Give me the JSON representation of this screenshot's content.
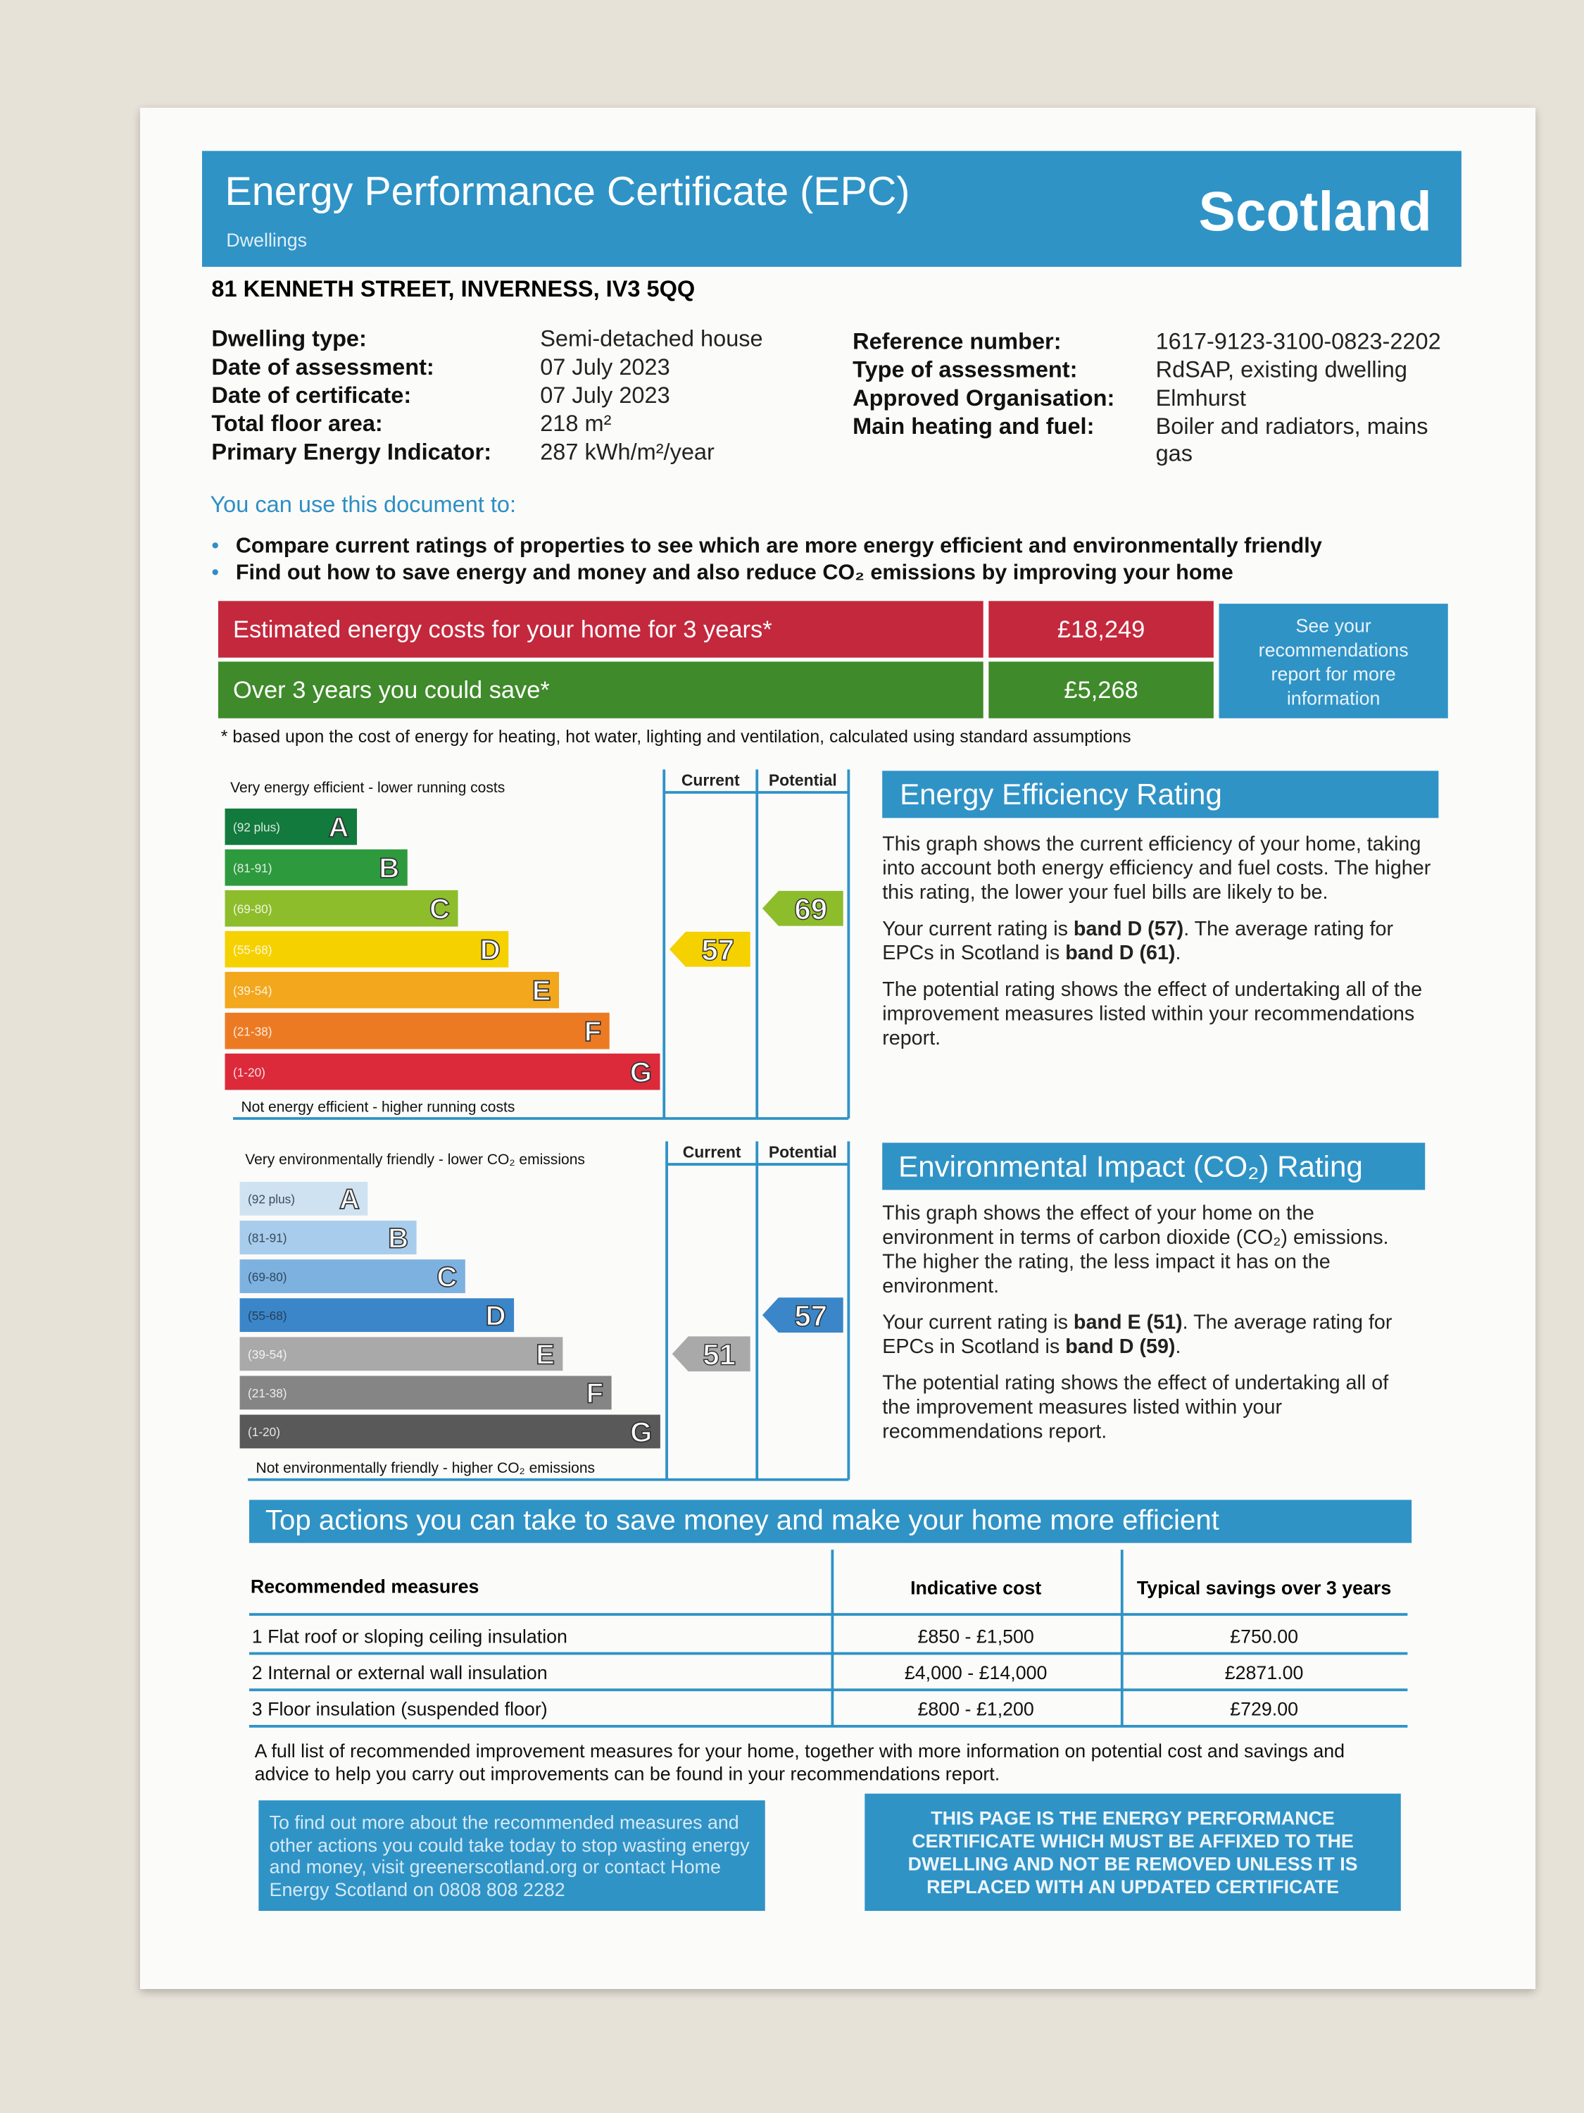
{
  "header": {
    "title": "Energy Performance Certificate (EPC)",
    "subtitle": "Dwellings",
    "region": "Scotland"
  },
  "address": "81 KENNETH STREET, INVERNESS, IV3 5QQ",
  "details_left": [
    [
      "Dwelling type:",
      "Semi-detached house"
    ],
    [
      "Date of assessment:",
      "07 July 2023"
    ],
    [
      "Date of certificate:",
      "07 July 2023"
    ],
    [
      "Total floor area:",
      "218 m²"
    ],
    [
      "Primary Energy Indicator:",
      "287 kWh/m²/year"
    ]
  ],
  "details_right": [
    [
      "Reference number:",
      "1617-9123-3100-0823-2202"
    ],
    [
      "Type of assessment:",
      "RdSAP, existing dwelling"
    ],
    [
      "Approved Organisation:",
      "Elmhurst"
    ],
    [
      "Main heating and fuel:",
      "Boiler and radiators, mains gas"
    ]
  ],
  "uses": {
    "heading": "You can use this document to:",
    "items": [
      "Compare current ratings of properties to see which are more energy efficient and environmentally friendly",
      "Find out how to save energy and money and also reduce CO₂ emissions by improving your home"
    ]
  },
  "costs": {
    "rows": [
      [
        "Estimated energy costs for your home for 3 years*",
        "£18,249"
      ],
      [
        "Over 3 years you could save*",
        "£5,268"
      ]
    ],
    "link": "See your recommendations report for more information",
    "footnote": "* based upon the cost of energy for heating, hot water, lighting and ventilation, calculated using standard assumptions"
  },
  "energy_rating": {
    "title": "Energy Efficiency Rating",
    "top_label": "Very energy efficient - lower running costs",
    "bottom_label": "Not energy efficient - higher running costs",
    "columns": [
      "Current",
      "Potential"
    ],
    "bands": [
      {
        "range": "(92 plus)",
        "letter": "A",
        "color": "#127a3c"
      },
      {
        "range": "(81-91)",
        "letter": "B",
        "color": "#2d9a3e"
      },
      {
        "range": "(69-80)",
        "letter": "C",
        "color": "#8dbd2b"
      },
      {
        "range": "(55-68)",
        "letter": "D",
        "color": "#f5d100"
      },
      {
        "range": "(39-54)",
        "letter": "E",
        "color": "#f2a71c"
      },
      {
        "range": "(21-38)",
        "letter": "F",
        "color": "#ec7a23"
      },
      {
        "range": "(1-20)",
        "letter": "G",
        "color": "#dc2a3a"
      }
    ],
    "current": 57,
    "potential": 69,
    "paragraphs": [
      [
        {
          "text": "This graph shows the current efficiency of your home, taking into account both energy efficiency and fuel costs. The higher this rating, the lower your fuel bills are likely to be.",
          "bold": false
        }
      ],
      [
        {
          "text": "Your current rating is ",
          "bold": false
        },
        {
          "text": "band D (57)",
          "bold": true
        },
        {
          "text": ". The average rating for EPCs in Scotland is ",
          "bold": false
        },
        {
          "text": "band D (61)",
          "bold": true
        },
        {
          "text": ".",
          "bold": false
        }
      ],
      [
        {
          "text": "The potential rating shows the effect of undertaking all of the improvement measures listed within your recommendations report.",
          "bold": false
        }
      ]
    ]
  },
  "environmental_rating": {
    "title": "Environmental Impact (CO₂) Rating",
    "top_label": "Very environmentally friendly - lower CO₂ emissions",
    "bottom_label": "Not environmentally friendly - higher CO₂ emissions",
    "columns": [
      "Current",
      "Potential"
    ],
    "bands": [
      {
        "range": "(92 plus)",
        "letter": "A",
        "color": "#cfe2f2"
      },
      {
        "range": "(81-91)",
        "letter": "B",
        "color": "#a8cceb"
      },
      {
        "range": "(69-80)",
        "letter": "C",
        "color": "#7db2e0"
      },
      {
        "range": "(55-68)",
        "letter": "D",
        "color": "#3a86c8"
      },
      {
        "range": "(39-54)",
        "letter": "E",
        "color": "#a9a9a9"
      },
      {
        "range": "(21-38)",
        "letter": "F",
        "color": "#858585"
      },
      {
        "range": "(1-20)",
        "letter": "G",
        "color": "#595959"
      }
    ],
    "current": 51,
    "potential": 57,
    "paragraphs": [
      [
        {
          "text": "This graph shows the effect of your home on the environment in terms of carbon dioxide (CO₂) emissions. The higher the rating, the less impact it has on the environment.",
          "bold": false
        }
      ],
      [
        {
          "text": "Your current rating is ",
          "bold": false
        },
        {
          "text": "band E (51)",
          "bold": true
        },
        {
          "text": ". The average rating for EPCs in Scotland is ",
          "bold": false
        },
        {
          "text": "band D (59)",
          "bold": true
        },
        {
          "text": ".",
          "bold": false
        }
      ],
      [
        {
          "text": "The potential rating shows the effect of undertaking all of the improvement measures listed within your recommendations report.",
          "bold": false
        }
      ]
    ]
  },
  "actions": {
    "title": "Top actions you can take to save money and make your home more efficient",
    "headers": [
      "Recommended measures",
      "Indicative cost",
      "Typical savings over 3 years"
    ],
    "rows": [
      [
        "1 Flat roof or sloping ceiling insulation",
        "£850 - £1,500",
        "£750.00"
      ],
      [
        "2 Internal or external wall insulation",
        "£4,000 - £14,000",
        "£2871.00"
      ],
      [
        "3 Floor insulation (suspended floor)",
        "£800 - £1,200",
        "£729.00"
      ]
    ],
    "note": "A full list of recommended improvement measures for your home, together with more information on potential cost and savings and advice to help you carry out improvements can be found in your recommendations report."
  },
  "footer": {
    "advice": "To find out more about the recommended measures and other actions you could take today to stop wasting energy and money, visit greenerscotland.org or contact Home Energy Scotland on 0808 808 2282",
    "notice": "THIS PAGE IS THE ENERGY PERFORMANCE CERTIFICATE WHICH MUST BE AFFIXED TO THE DWELLING AND NOT BE REMOVED UNLESS IT IS REPLACED WITH AN UPDATED CERTIFICATE"
  }
}
